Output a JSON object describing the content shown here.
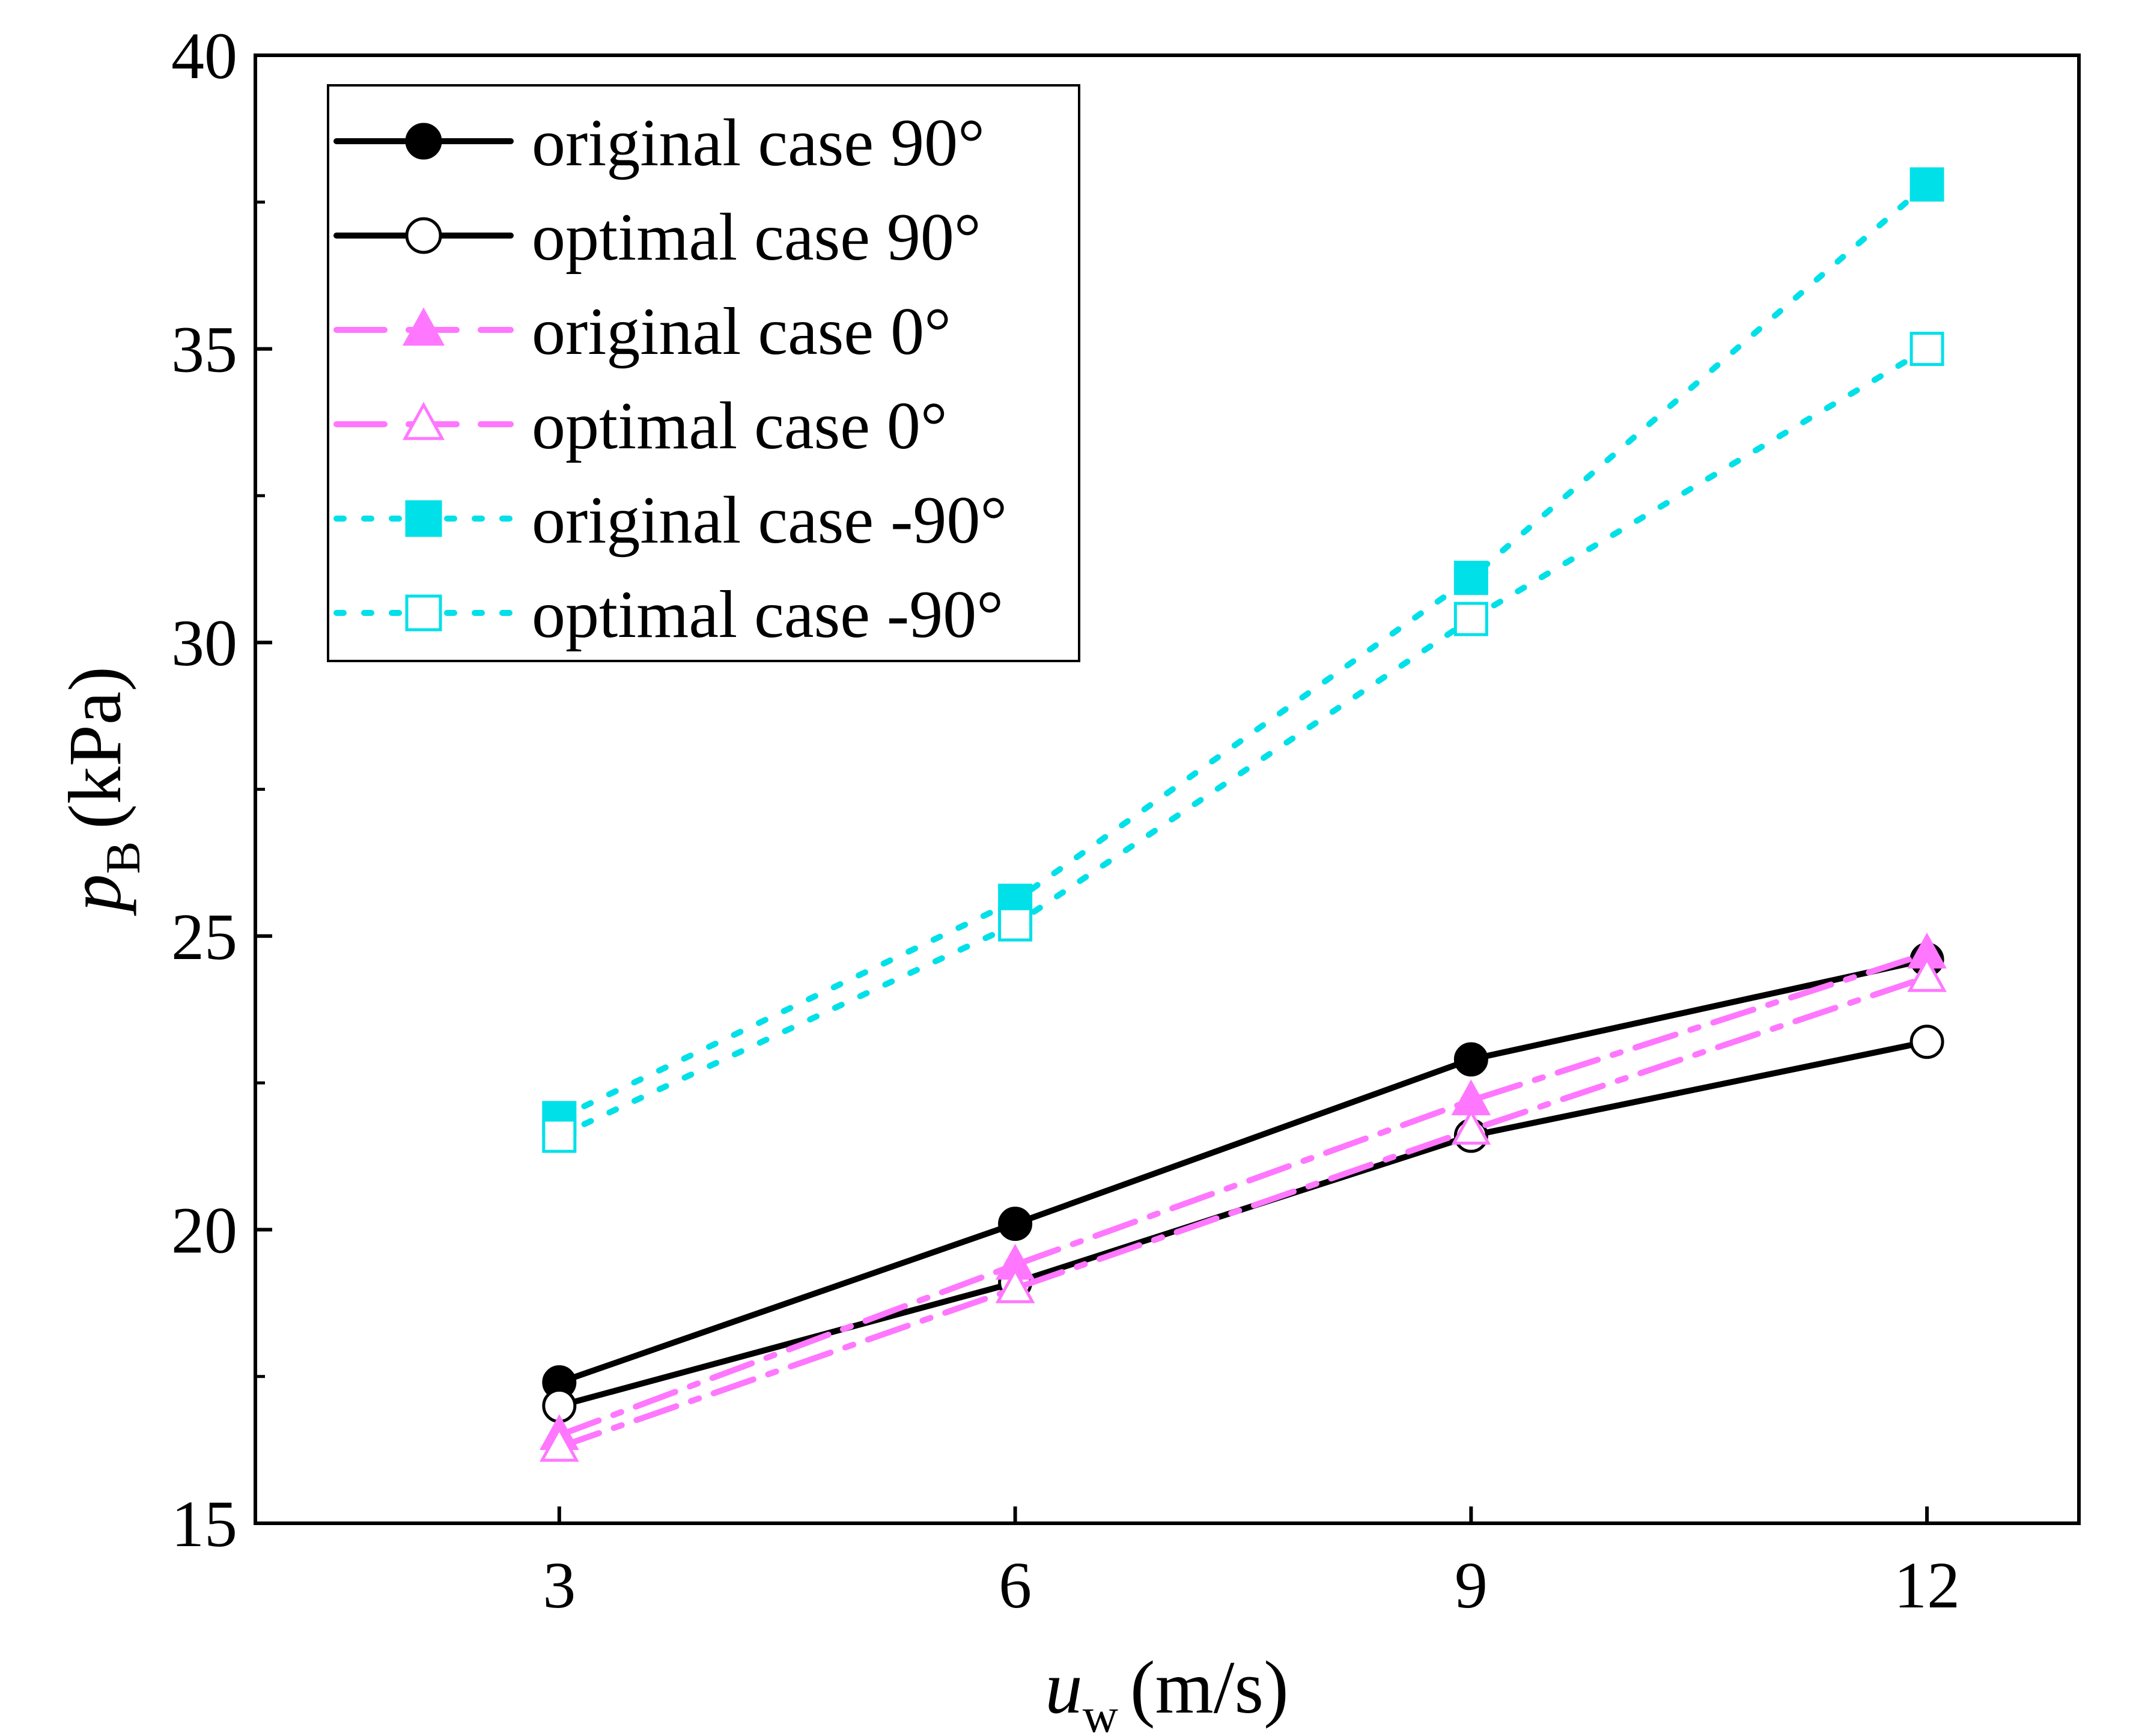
{
  "chart_data": {
    "type": "line",
    "title": "",
    "xlabel": {
      "main": "u",
      "sub": "w",
      "unit": "(m/s)"
    },
    "ylabel": {
      "main": "p",
      "sub": "B",
      "unit": "(kPa)"
    },
    "xlim": [
      1.0,
      13.0
    ],
    "ylim": [
      15,
      40
    ],
    "x_ticks": [
      3,
      6,
      9,
      12
    ],
    "x_tick_labels": [
      "3",
      "6",
      "9",
      "12"
    ],
    "y_ticks": [
      15,
      20,
      25,
      30,
      35,
      40
    ],
    "y_tick_labels": [
      "15",
      "20",
      "25",
      "30",
      "35",
      "40"
    ],
    "y_minor_ticks": [
      17.5,
      22.5,
      27.5,
      32.5,
      37.5
    ],
    "grid": false,
    "legend_position": "top-left",
    "x": [
      3,
      6,
      9,
      12
    ],
    "series": [
      {
        "name": "original case 90°",
        "values": [
          17.4,
          20.1,
          22.9,
          24.6
        ],
        "color": "#000000",
        "dash": "solid",
        "marker": "circle",
        "filled": true
      },
      {
        "name": "optimal case 90°",
        "values": [
          17.0,
          19.1,
          21.6,
          23.2
        ],
        "color": "#000000",
        "dash": "solid",
        "marker": "circle",
        "filled": false
      },
      {
        "name": "original case 0°",
        "values": [
          16.5,
          19.4,
          22.2,
          24.7
        ],
        "color": "#ff77ff",
        "dash": "dashdot",
        "marker": "triangle",
        "filled": true
      },
      {
        "name": "optimal case 0°",
        "values": [
          16.3,
          19.0,
          21.7,
          24.3
        ],
        "color": "#ff77ff",
        "dash": "dashdot",
        "marker": "triangle",
        "filled": false
      },
      {
        "name": "original case -90°",
        "values": [
          21.9,
          25.6,
          31.1,
          37.8
        ],
        "color": "#00e0e8",
        "dash": "dot",
        "marker": "square",
        "filled": true
      },
      {
        "name": "optimal case -90°",
        "values": [
          21.6,
          25.2,
          30.4,
          35.0
        ],
        "color": "#00e0e8",
        "dash": "dot",
        "marker": "square",
        "filled": false
      }
    ]
  }
}
